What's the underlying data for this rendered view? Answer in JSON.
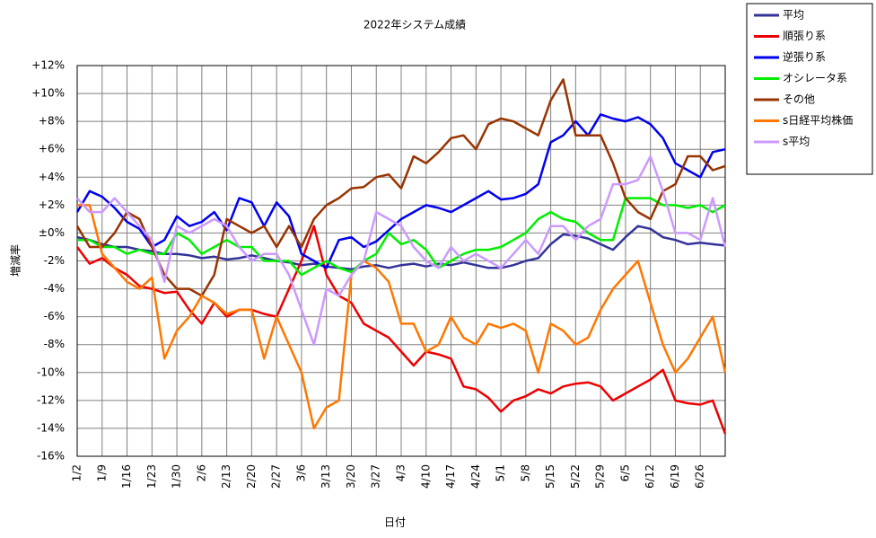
{
  "chart_data": {
    "type": "line",
    "title": "2022年システム成績",
    "x_label": "日付",
    "y_label": "増減率",
    "categories": [
      "1/2",
      null,
      "1/9",
      null,
      "1/16",
      null,
      "1/23",
      null,
      "1/30",
      null,
      "2/6",
      null,
      "2/13",
      null,
      "2/20",
      null,
      "2/27",
      null,
      "3/6",
      null,
      "3/13",
      null,
      "3/20",
      null,
      "3/27",
      null,
      "4/3",
      null,
      "4/10",
      null,
      "4/17",
      null,
      "4/24",
      null,
      "5/1",
      null,
      "5/8",
      null,
      "5/15",
      null,
      "5/22",
      null,
      "5/29",
      null,
      "6/5",
      null,
      "6/12",
      null,
      "6/19",
      null,
      "6/26",
      null,
      null
    ],
    "ylim": [
      -16,
      12
    ],
    "yticks": [
      {
        "value": -16,
        "label": "-16%"
      },
      {
        "value": -14,
        "label": "-14%"
      },
      {
        "value": -12,
        "label": "-12%"
      },
      {
        "value": -10,
        "label": "-10%"
      },
      {
        "value": -8,
        "label": "-8%"
      },
      {
        "value": -6,
        "label": "-6%"
      },
      {
        "value": -4,
        "label": "-4%"
      },
      {
        "value": -2,
        "label": "-2%"
      },
      {
        "value": 0,
        "label": "±0%"
      },
      {
        "value": 2,
        "label": "+2%"
      },
      {
        "value": 4,
        "label": "+4%"
      },
      {
        "value": 6,
        "label": "+6%"
      },
      {
        "value": 8,
        "label": "+8%"
      },
      {
        "value": 10,
        "label": "+10%"
      },
      {
        "value": 12,
        "label": "+12%"
      }
    ],
    "grid": true,
    "legend": "right",
    "series": [
      {
        "name": "平均",
        "color": "#333399",
        "values": [
          -0.3,
          -0.5,
          -0.8,
          -1,
          -1,
          -1.2,
          -1.3,
          -1.5,
          -1.5,
          -1.6,
          -1.8,
          -1.7,
          -1.9,
          -1.8,
          -1.6,
          -1.8,
          -2,
          -2.1,
          -2.3,
          -2.2,
          -2.4,
          -2.5,
          -2.6,
          -2.4,
          -2.3,
          -2.5,
          -2.3,
          -2.2,
          -2.4,
          -2.2,
          -2.3,
          -2.1,
          -2.3,
          -2.5,
          -2.5,
          -2.3,
          -2,
          -1.8,
          -0.8,
          -0.1,
          -0.2,
          -0.4,
          -0.8,
          -1.2,
          -0.3,
          0.5,
          0.3,
          -0.3,
          -0.5,
          -0.8,
          -0.7,
          -0.8,
          -0.9
        ]
      },
      {
        "name": "順張り系",
        "color": "#ee0000",
        "values": [
          -1,
          -2.2,
          -1.8,
          -2.5,
          -3,
          -3.8,
          -4,
          -4.3,
          -4.2,
          -5.5,
          -6.5,
          -5,
          -6,
          -5.5,
          -5.5,
          -5.8,
          -6,
          -4,
          -2,
          0.5,
          -3,
          -4.5,
          -5,
          -6.5,
          -7,
          -7.5,
          -8.5,
          -9.5,
          -8.5,
          -8.7,
          -9,
          -11,
          -11.2,
          -11.8,
          -12.8,
          -12,
          -11.7,
          -11.2,
          -11.5,
          -11,
          -10.8,
          -10.7,
          -11,
          -12,
          -11.5,
          -11,
          -10.5,
          -9.8,
          -12,
          -12.2,
          -12.3,
          -12,
          -14.4
        ]
      },
      {
        "name": "逆張り系",
        "color": "#0000ee",
        "values": [
          1.5,
          3,
          2.6,
          1.8,
          0.8,
          0.3,
          -1,
          -0.5,
          1.2,
          0.5,
          0.8,
          1.5,
          0.2,
          2.5,
          2.2,
          0.5,
          2.2,
          1.2,
          -1.5,
          -2,
          -2.5,
          -0.5,
          -0.3,
          -1,
          -0.6,
          0.2,
          1,
          1.5,
          2,
          1.8,
          1.5,
          2,
          2.5,
          3,
          2.4,
          2.5,
          2.8,
          3.5,
          6.5,
          7,
          8,
          7,
          8.5,
          8.2,
          8,
          8.3,
          7.8,
          6.8,
          5,
          4.5,
          4,
          5.8,
          6
        ]
      },
      {
        "name": "オシレータ系",
        "color": "#00ee00",
        "values": [
          -0.5,
          -0.5,
          -1,
          -1,
          -1.5,
          -1.2,
          -1.5,
          -1.5,
          0,
          -0.5,
          -1.5,
          -1,
          -0.5,
          -1,
          -1,
          -2,
          -2,
          -2,
          -3,
          -2.5,
          -2,
          -2.5,
          -2.8,
          -2,
          -1.5,
          0,
          -0.8,
          -0.5,
          -1.2,
          -2.5,
          -2,
          -1.5,
          -1.2,
          -1.2,
          -1,
          -0.5,
          0,
          1,
          1.5,
          1,
          0.8,
          0,
          -0.5,
          -0.5,
          2.5,
          2.5,
          2.5,
          2,
          2,
          1.8,
          2,
          1.5,
          2
        ]
      },
      {
        "name": "その他",
        "color": "#993300",
        "values": [
          0.5,
          -1,
          -1,
          0,
          1.5,
          1,
          -1,
          -3,
          -4,
          -4,
          -4.5,
          -3,
          1,
          0.5,
          0,
          0.5,
          -1,
          0.5,
          -1,
          1,
          2,
          2.5,
          3.2,
          3.3,
          4,
          4.2,
          3.2,
          5.5,
          5,
          5.8,
          6.8,
          7,
          6,
          7.8,
          8.2,
          8,
          7.5,
          7,
          9.5,
          11,
          7,
          7,
          7,
          5,
          2.5,
          1.5,
          1,
          3,
          3.5,
          5.5,
          5.5,
          4.5,
          4.8
        ]
      },
      {
        "name": "s日経平均株価",
        "color": "#ff7700",
        "values": [
          2,
          2,
          -1.5,
          -2.5,
          -3.5,
          -4,
          -3.2,
          -9,
          -7,
          -6,
          -4.5,
          -5,
          -5.8,
          -5.5,
          -5.5,
          -9,
          -6,
          -8,
          -10,
          -14,
          -12.5,
          -12,
          -3,
          -2,
          -2.5,
          -3.5,
          -6.5,
          -6.5,
          -8.5,
          -8,
          -6,
          -7.5,
          -8,
          -6.5,
          -6.8,
          -6.5,
          -7,
          -10,
          -6.5,
          -7,
          -8,
          -7.5,
          -5.5,
          -4,
          -3,
          -2,
          -5,
          -8,
          -10,
          -9,
          -7.5,
          -6,
          -10
        ]
      },
      {
        "name": "s平均",
        "color": "#cc99ff",
        "values": [
          2.5,
          1.5,
          1.5,
          2.5,
          1.5,
          0.5,
          -0.5,
          -3.5,
          0.5,
          0,
          0.5,
          1,
          0.5,
          -1,
          -2,
          -1.5,
          -1.5,
          -3,
          -5.5,
          -8,
          -4,
          -4.5,
          -3,
          -2,
          1.5,
          1,
          0.5,
          -1,
          -2,
          -2.5,
          -1,
          -2,
          -1.5,
          -2,
          -2.5,
          -1.5,
          -0.5,
          -1.5,
          0.5,
          0.5,
          -0.5,
          0.5,
          1,
          3.5,
          3.5,
          3.8,
          5.5,
          3,
          0,
          0,
          -0.5,
          2.5,
          -1
        ]
      }
    ]
  }
}
